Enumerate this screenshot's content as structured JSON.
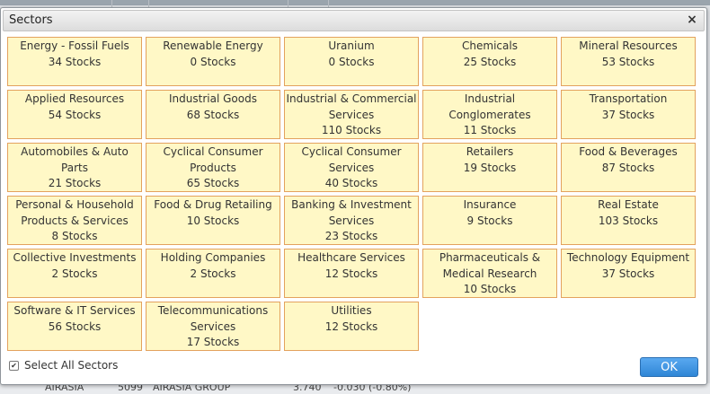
{
  "dialog": {
    "title": "Sectors",
    "close_icon": "×",
    "select_all_label": "Select All Sectors",
    "select_all_checked": true,
    "ok_label": "OK"
  },
  "sectors": [
    {
      "name": "Energy - Fossil Fuels",
      "count": "34 Stocks"
    },
    {
      "name": "Renewable Energy",
      "count": "0 Stocks"
    },
    {
      "name": "Uranium",
      "count": "0 Stocks"
    },
    {
      "name": "Chemicals",
      "count": "25 Stocks"
    },
    {
      "name": "Mineral Resources",
      "count": "53 Stocks"
    },
    {
      "name": "Applied Resources",
      "count": "54 Stocks"
    },
    {
      "name": "Industrial Goods",
      "count": "68 Stocks"
    },
    {
      "name": "Industrial & Commercial Services",
      "count": "110 Stocks"
    },
    {
      "name": "Industrial Conglomerates",
      "count": "11 Stocks"
    },
    {
      "name": "Transportation",
      "count": "37 Stocks"
    },
    {
      "name": "Automobiles & Auto Parts",
      "count": "21 Stocks"
    },
    {
      "name": "Cyclical Consumer Products",
      "count": "65 Stocks"
    },
    {
      "name": "Cyclical Consumer Services",
      "count": "40 Stocks"
    },
    {
      "name": "Retailers",
      "count": "19 Stocks"
    },
    {
      "name": "Food & Beverages",
      "count": "87 Stocks"
    },
    {
      "name": "Personal & Household Products & Services",
      "count": "8 Stocks"
    },
    {
      "name": "Food & Drug Retailing",
      "count": "10 Stocks"
    },
    {
      "name": "Banking & Investment Services",
      "count": "23 Stocks"
    },
    {
      "name": "Insurance",
      "count": "9 Stocks"
    },
    {
      "name": "Real Estate",
      "count": "103 Stocks"
    },
    {
      "name": "Collective Investments",
      "count": "2 Stocks"
    },
    {
      "name": "Holding Companies",
      "count": "2 Stocks"
    },
    {
      "name": "Healthcare Services",
      "count": "12 Stocks"
    },
    {
      "name": "Pharmaceuticals & Medical Research",
      "count": "10 Stocks"
    },
    {
      "name": "Technology Equipment",
      "count": "37 Stocks"
    },
    {
      "name": "Software & IT Services",
      "count": "56 Stocks"
    },
    {
      "name": "Telecommunications Services",
      "count": "17 Stocks"
    },
    {
      "name": "Utilities",
      "count": "12 Stocks"
    }
  ],
  "background_row": {
    "name": "AIRASIA",
    "code": "5099",
    "company": "AIRASIA GROUP",
    "price": "3.740",
    "change": "-0.030 (-0.80%)"
  }
}
